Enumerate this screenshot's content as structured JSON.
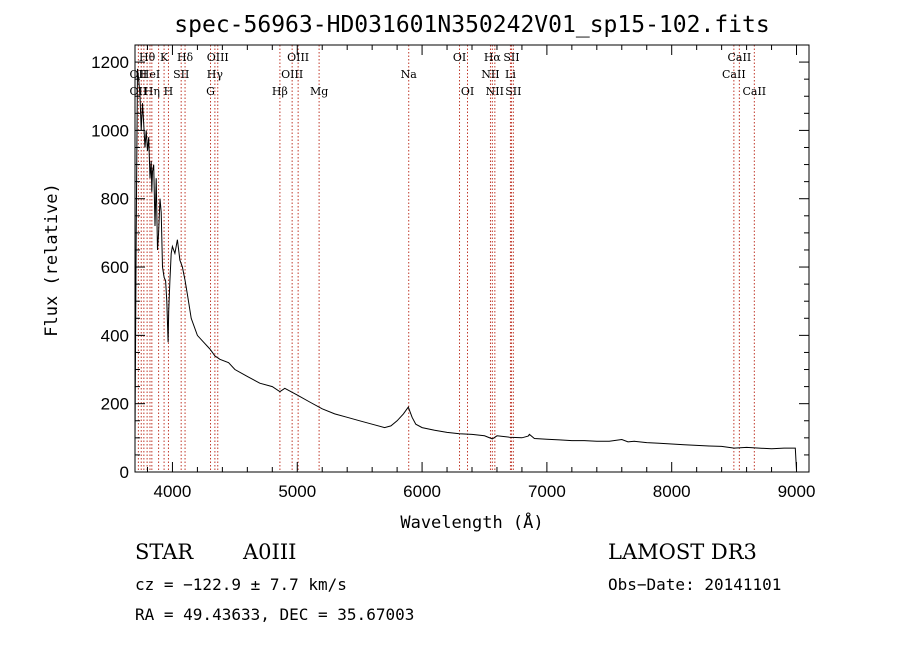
{
  "chart_data": {
    "type": "line",
    "title": "spec-56963-HD031601N350242V01_sp15-102.fits",
    "xlabel": "Wavelength (Å)",
    "ylabel": "Flux (relative)",
    "xlim": [
      3700,
      9100
    ],
    "ylim": [
      0,
      1250
    ],
    "x_ticks": [
      4000,
      5000,
      6000,
      7000,
      8000,
      9000
    ],
    "y_ticks": [
      0,
      200,
      400,
      600,
      800,
      1000,
      1200
    ],
    "grid": false,
    "series": [
      {
        "name": "flux",
        "x": [
          3700,
          3710,
          3720,
          3730,
          3740,
          3750,
          3760,
          3770,
          3780,
          3790,
          3800,
          3810,
          3820,
          3830,
          3835,
          3840,
          3850,
          3860,
          3870,
          3880,
          3889,
          3900,
          3910,
          3920,
          3933,
          3945,
          3955,
          3965,
          3970,
          3980,
          3990,
          4000,
          4020,
          4040,
          4060,
          4080,
          4101,
          4120,
          4150,
          4200,
          4250,
          4300,
          4340,
          4380,
          4450,
          4500,
          4600,
          4700,
          4800,
          4861,
          4900,
          5000,
          5100,
          5200,
          5300,
          5400,
          5500,
          5600,
          5700,
          5750,
          5800,
          5850,
          5890,
          5920,
          5950,
          6000,
          6100,
          6200,
          6300,
          6400,
          6500,
          6563,
          6600,
          6700,
          6800,
          6850,
          6860,
          6900,
          7000,
          7100,
          7200,
          7300,
          7400,
          7500,
          7600,
          7650,
          7700,
          7800,
          7900,
          8000,
          8100,
          8200,
          8300,
          8400,
          8500,
          8600,
          8700,
          8800,
          8900,
          8990,
          9000
        ],
        "y": [
          100,
          700,
          1180,
          1150,
          1100,
          1000,
          1080,
          1020,
          950,
          1000,
          940,
          980,
          860,
          910,
          820,
          880,
          900,
          720,
          860,
          650,
          700,
          800,
          760,
          600,
          570,
          560,
          500,
          380,
          470,
          560,
          640,
          660,
          640,
          680,
          620,
          600,
          560,
          520,
          450,
          400,
          380,
          360,
          340,
          330,
          320,
          300,
          280,
          260,
          250,
          235,
          245,
          225,
          205,
          185,
          170,
          160,
          150,
          140,
          130,
          135,
          150,
          170,
          190,
          160,
          140,
          130,
          122,
          116,
          112,
          110,
          106,
          97,
          106,
          102,
          100,
          105,
          110,
          98,
          96,
          94,
          92,
          92,
          90,
          90,
          95,
          88,
          90,
          86,
          84,
          82,
          80,
          78,
          76,
          75,
          70,
          72,
          70,
          68,
          70,
          70,
          5
        ]
      }
    ],
    "line_labels": [
      {
        "name": "Hθ",
        "x": 3797,
        "row": 1
      },
      {
        "name": "OII",
        "x": 3727,
        "row": 2
      },
      {
        "name": "OII",
        "x": 3727,
        "row": 3
      },
      {
        "name": "HeI",
        "x": 3820,
        "row": 2
      },
      {
        "name": "Hη",
        "x": 3835,
        "row": 3
      },
      {
        "name": "K",
        "x": 3933,
        "row": 1
      },
      {
        "name": "SII",
        "x": 4070,
        "row": 2
      },
      {
        "name": "H",
        "x": 3968,
        "row": 3
      },
      {
        "name": "Hδ",
        "x": 4101,
        "row": 1
      },
      {
        "name": "OIII",
        "x": 4363,
        "row": 1
      },
      {
        "name": "Hγ",
        "x": 4340,
        "row": 2
      },
      {
        "name": "G",
        "x": 4305,
        "row": 3
      },
      {
        "name": "Hβ",
        "x": 4861,
        "row": 3
      },
      {
        "name": "OIII",
        "x": 5007,
        "row": 1
      },
      {
        "name": "OIII",
        "x": 4959,
        "row": 2
      },
      {
        "name": "Mg",
        "x": 5175,
        "row": 3
      },
      {
        "name": "Na",
        "x": 5893,
        "row": 2
      },
      {
        "name": "OI",
        "x": 6300,
        "row": 1
      },
      {
        "name": "OI",
        "x": 6364,
        "row": 3
      },
      {
        "name": "Hα",
        "x": 6563,
        "row": 1
      },
      {
        "name": "NII",
        "x": 6548,
        "row": 2
      },
      {
        "name": "NII",
        "x": 6583,
        "row": 3
      },
      {
        "name": "SII",
        "x": 6716,
        "row": 1
      },
      {
        "name": "Li",
        "x": 6708,
        "row": 2
      },
      {
        "name": "SII",
        "x": 6731,
        "row": 3
      },
      {
        "name": "CaII",
        "x": 8542,
        "row": 1
      },
      {
        "name": "CaII",
        "x": 8498,
        "row": 2
      },
      {
        "name": "CaII",
        "x": 8662,
        "row": 3
      }
    ],
    "line_positions": [
      3727,
      3750,
      3771,
      3797,
      3820,
      3835,
      3889,
      3933,
      3968,
      4070,
      4101,
      4305,
      4340,
      4363,
      4861,
      4959,
      5007,
      5175,
      5893,
      6300,
      6364,
      6548,
      6563,
      6583,
      6708,
      6716,
      6731,
      8498,
      8542,
      8662
    ]
  },
  "info": {
    "object_type": "STAR",
    "subclass": "A0III",
    "survey": "LAMOST DR3",
    "cz": "cz = −122.9 ± 7.7 km/s",
    "obs_date": "Obs−Date: 20141101",
    "coords": "RA =  49.43633, DEC =  35.67003"
  }
}
